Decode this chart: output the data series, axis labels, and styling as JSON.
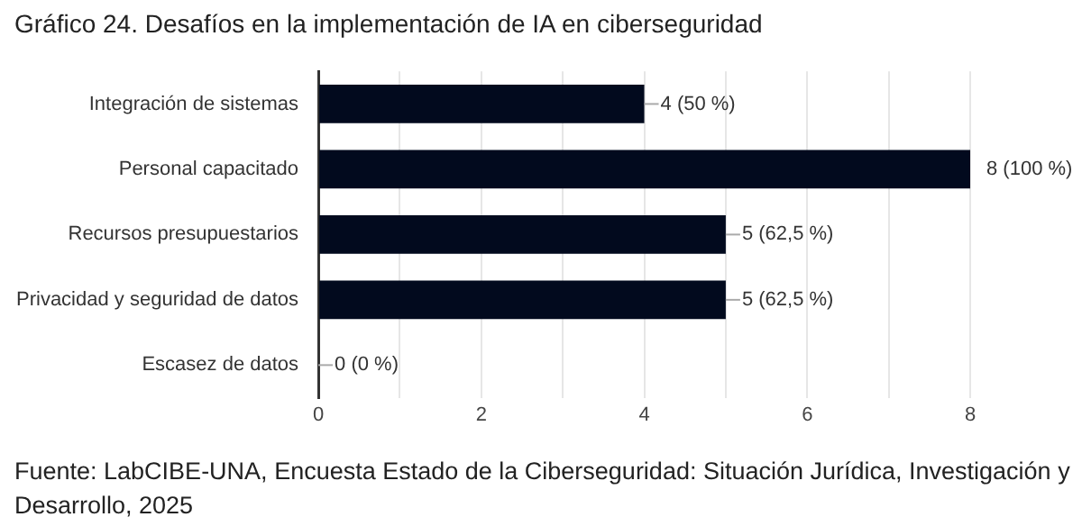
{
  "chart_data": {
    "type": "bar",
    "orientation": "horizontal",
    "title": "Gráfico 24. Desafíos en la implementación de IA en ciberseguridad",
    "categories": [
      "Integración de sistemas",
      "Personal capacitado",
      "Recursos presupuestarios",
      "Privacidad y seguridad de datos",
      "Escasez de datos"
    ],
    "values": [
      4,
      8,
      5,
      5,
      0
    ],
    "value_labels": [
      "4 (50 %)",
      "8 (100 %)",
      "5 (62,5 %)",
      "5 (62,5 %)",
      "0 (0 %)"
    ],
    "color": "#020a1e",
    "xlim": [
      0,
      8
    ],
    "xticks": [
      0,
      {
        "value": 1,
        "label": null
      },
      2,
      {
        "value": 3,
        "label": null
      },
      4,
      {
        "value": 5,
        "label": null
      },
      6,
      {
        "value": 7,
        "label": null
      },
      8
    ],
    "grid": "x",
    "annotations": [
      "Fuente: LabCIBE-UNA, Encuesta Estado de la Ciberseguridad: Situación Jurídica, Investigación y Desarrollo, 2025"
    ]
  }
}
